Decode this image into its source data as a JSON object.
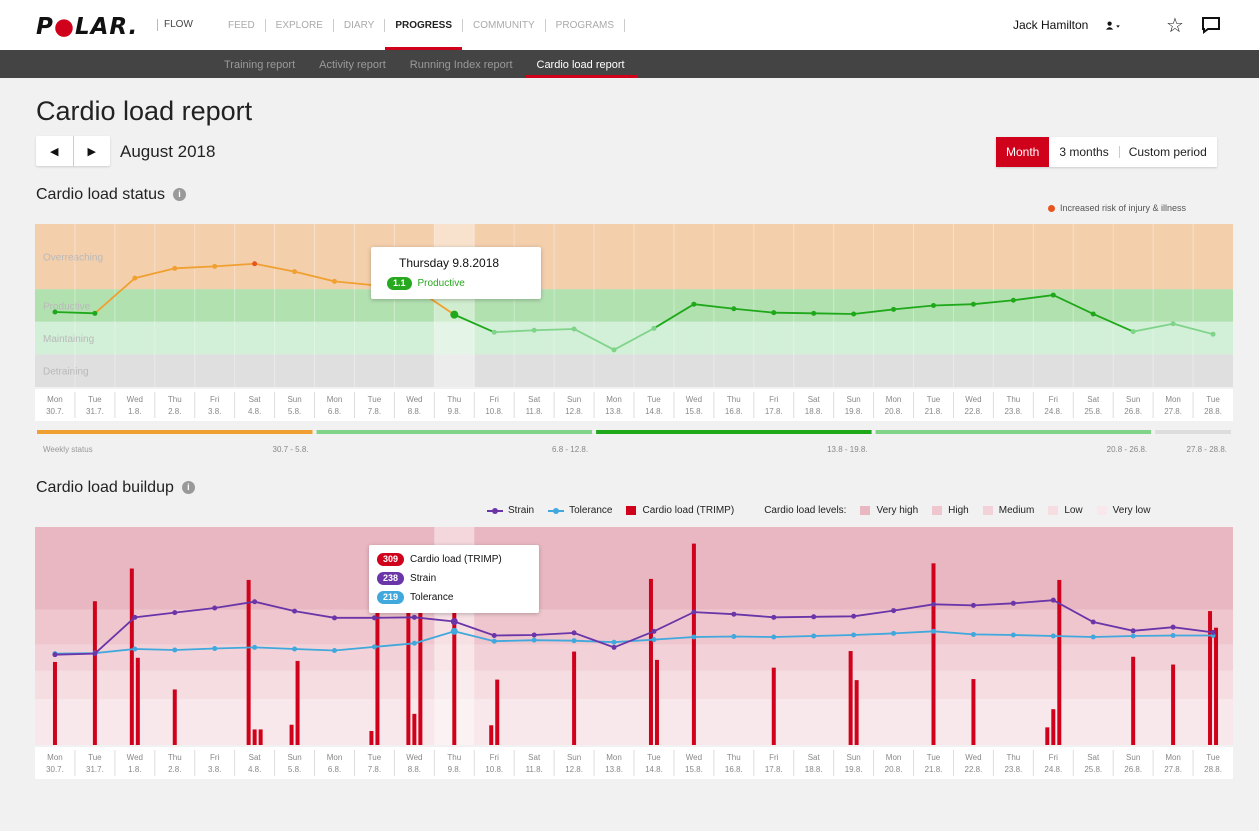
{
  "app": {
    "brand": "POLAR",
    "product": "FLOW",
    "main_nav": [
      "FEED",
      "EXPLORE",
      "DIARY",
      "PROGRESS",
      "COMMUNITY",
      "PROGRAMS"
    ],
    "active_main": "PROGRESS",
    "user_name": "Jack Hamilton",
    "sub_nav": [
      "Training report",
      "Activity report",
      "Running Index report",
      "Cardio load report"
    ],
    "active_sub": "Cardio load report"
  },
  "page": {
    "title": "Cardio load report",
    "month": "August 2018",
    "period_options": [
      "Month",
      "3 months",
      "Custom period"
    ],
    "active_period": "Month"
  },
  "colors": {
    "brand_red": "#d0021b",
    "overreaching": "#f4c9a0",
    "productive": "#7ed47a",
    "maintaining": "#cdeed4",
    "detraining": "#dcdcdc",
    "status_orange": "#f0a030",
    "status_green_dark": "#1fa81a",
    "status_green_light": "#7fd48a",
    "strain": "#6a35a8",
    "tolerance": "#40a8dc",
    "cardio_load": "#d0021b",
    "risk": "#e8541e"
  },
  "days": [
    {
      "dow": "Mon",
      "date": "30.7."
    },
    {
      "dow": "Tue",
      "date": "31.7."
    },
    {
      "dow": "Wed",
      "date": "1.8."
    },
    {
      "dow": "Thu",
      "date": "2.8."
    },
    {
      "dow": "Fri",
      "date": "3.8."
    },
    {
      "dow": "Sat",
      "date": "4.8."
    },
    {
      "dow": "Sun",
      "date": "5.8."
    },
    {
      "dow": "Mon",
      "date": "6.8."
    },
    {
      "dow": "Tue",
      "date": "7.8."
    },
    {
      "dow": "Wed",
      "date": "8.8."
    },
    {
      "dow": "Thu",
      "date": "9.8."
    },
    {
      "dow": "Fri",
      "date": "10.8."
    },
    {
      "dow": "Sat",
      "date": "11.8."
    },
    {
      "dow": "Sun",
      "date": "12.8."
    },
    {
      "dow": "Mon",
      "date": "13.8."
    },
    {
      "dow": "Tue",
      "date": "14.8."
    },
    {
      "dow": "Wed",
      "date": "15.8."
    },
    {
      "dow": "Thu",
      "date": "16.8."
    },
    {
      "dow": "Fri",
      "date": "17.8."
    },
    {
      "dow": "Sat",
      "date": "18.8."
    },
    {
      "dow": "Sun",
      "date": "19.8."
    },
    {
      "dow": "Mon",
      "date": "20.8."
    },
    {
      "dow": "Tue",
      "date": "21.8."
    },
    {
      "dow": "Wed",
      "date": "22.8."
    },
    {
      "dow": "Thu",
      "date": "23.8."
    },
    {
      "dow": "Fri",
      "date": "24.8."
    },
    {
      "dow": "Sat",
      "date": "25.8."
    },
    {
      "dow": "Sun",
      "date": "26.8."
    },
    {
      "dow": "Mon",
      "date": "27.8."
    },
    {
      "dow": "Tue",
      "date": "28.8."
    }
  ],
  "status_chart": {
    "title": "Cardio load status",
    "risk_legend": "Increased risk of injury & illness",
    "zones": [
      "Overreaching",
      "Productive",
      "Maintaining",
      "Detraining"
    ],
    "tooltip": {
      "date": "Thursday 9.8.2018",
      "value": "1.1",
      "status": "Productive"
    },
    "weekly_label": "Weekly status",
    "weeks": [
      {
        "range": "30.7 - 5.8.",
        "status": "overreaching"
      },
      {
        "range": "6.8 - 12.8.",
        "status": "productive"
      },
      {
        "range": "13.8 - 19.8.",
        "status": "productive"
      },
      {
        "range": "20.8 - 26.8.",
        "status": "maintaining"
      },
      {
        "range": "27.8 - 28.8.",
        "status": ""
      }
    ]
  },
  "buildup_chart": {
    "title": "Cardio load buildup",
    "legend": {
      "strain": "Strain",
      "tolerance": "Tolerance",
      "cardio_load": "Cardio load (TRIMP)",
      "levels_label": "Cardio load levels:",
      "levels": [
        "Very high",
        "High",
        "Medium",
        "Low",
        "Very low"
      ]
    },
    "tooltip": {
      "cardio_load": "309",
      "cardio_load_label": "Cardio load (TRIMP)",
      "strain": "238",
      "strain_label": "Strain",
      "tolerance": "219",
      "tolerance_label": "Tolerance"
    }
  },
  "chart_data": [
    {
      "type": "line",
      "title": "Cardio load status",
      "categories": [
        "30.7.",
        "31.7.",
        "1.8.",
        "2.8.",
        "3.8.",
        "4.8.",
        "5.8.",
        "6.8.",
        "7.8.",
        "8.8.",
        "9.8.",
        "10.8.",
        "11.8.",
        "12.8.",
        "13.8.",
        "14.8.",
        "15.8.",
        "16.8.",
        "17.8.",
        "18.8.",
        "19.8.",
        "20.8.",
        "21.8.",
        "22.8.",
        "23.8.",
        "24.8.",
        "25.8.",
        "26.8.",
        "27.8.",
        "28.8."
      ],
      "series": [
        {
          "values": [
            1.15,
            1.13,
            1.67,
            1.82,
            1.85,
            1.89,
            1.77,
            1.62,
            1.56,
            1.52,
            1.11,
            0.84,
            0.87,
            0.89,
            0.57,
            0.9,
            1.27,
            1.2,
            1.14,
            1.13,
            1.12,
            1.19,
            1.25,
            1.27,
            1.33,
            1.41,
            1.12,
            0.85,
            0.97,
            0.81
          ]
        }
      ],
      "zones": [
        {
          "name": "Overreaching",
          "min": 1.5,
          "max": 2.5
        },
        {
          "name": "Productive",
          "min": 1.0,
          "max": 1.5
        },
        {
          "name": "Maintaining",
          "min": 0.5,
          "max": 1.0
        },
        {
          "name": "Detraining",
          "min": 0.0,
          "max": 0.5
        }
      ],
      "ylim": [
        0,
        2.5
      ],
      "highlight": {
        "index": 10,
        "label": "Thursday 9.8.2018",
        "value": 1.1
      },
      "risk_points": [
        5
      ]
    },
    {
      "type": "bar",
      "title": "Cardio load buildup",
      "categories": [
        "30.7.",
        "31.7.",
        "1.8.",
        "2.8.",
        "3.8.",
        "4.8.",
        "5.8.",
        "6.8.",
        "7.8.",
        "8.8.",
        "9.8.",
        "10.8.",
        "11.8.",
        "12.8.",
        "13.8.",
        "14.8.",
        "15.8.",
        "16.8.",
        "17.8.",
        "18.8.",
        "19.8.",
        "20.8.",
        "21.8.",
        "22.8.",
        "23.8.",
        "24.8.",
        "25.8.",
        "26.8.",
        "27.8.",
        "28.8."
      ],
      "series": [
        {
          "name": "Strain",
          "type": "line",
          "values": [
            174,
            176,
            246,
            255,
            264,
            276,
            258,
            245,
            245,
            246,
            238,
            211,
            212,
            216,
            188,
            219,
            256,
            252,
            246,
            247,
            248,
            259,
            271,
            269,
            273,
            279,
            237,
            220,
            227,
            217
          ]
        },
        {
          "name": "Tolerance",
          "type": "line",
          "values": [
            176,
            177,
            185,
            183,
            186,
            188,
            185,
            182,
            189,
            196,
            219,
            200,
            202,
            201,
            198,
            203,
            208,
            209,
            208,
            210,
            212,
            215,
            219,
            213,
            212,
            210,
            208,
            210,
            211,
            211
          ]
        },
        {
          "name": "Cardio load (TRIMP)",
          "type": "bar",
          "bars": [
            [
              160
            ],
            [
              277
            ],
            [
              340,
              168
            ],
            [
              107
            ],
            [],
            [
              318,
              30,
              30
            ],
            [
              39,
              162
            ],
            [],
            [
              27,
              283
            ],
            [
              283,
              60,
              290
            ],
            [
              309
            ],
            [
              38,
              126
            ],
            [],
            [
              180
            ],
            [],
            [
              320,
              164
            ],
            [
              388
            ],
            [],
            [
              149
            ],
            [],
            [
              181,
              125
            ],
            [],
            [
              350
            ],
            [
              127
            ],
            [],
            [
              34,
              69,
              318
            ],
            [],
            [
              170
            ],
            [
              155
            ],
            [
              258,
              226
            ]
          ]
        }
      ],
      "ylim": [
        0,
        420
      ],
      "bands": [
        "Very high",
        "High",
        "Medium",
        "Low",
        "Very low"
      ],
      "highlight": {
        "index": 10,
        "cardio_load": 309,
        "strain": 238,
        "tolerance": 219
      }
    }
  ]
}
